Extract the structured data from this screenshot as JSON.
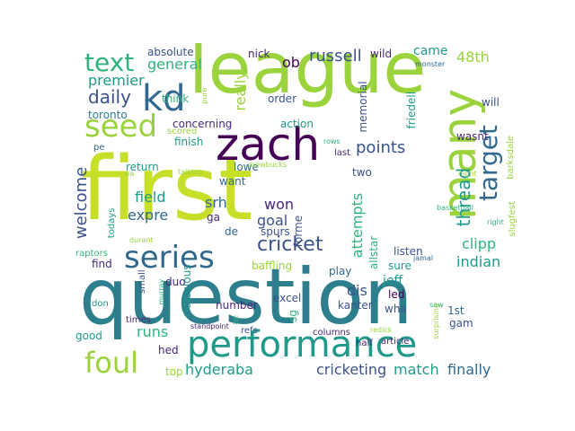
{
  "palette": {
    "yellow": "#c8df2a",
    "lime": "#9bd33c",
    "green": "#2fb47c",
    "teal": "#1f9a8a",
    "blue": "#2e7f8e",
    "steel": "#31688e",
    "indigo": "#3b528b",
    "purple": "#482878",
    "dark": "#440154"
  },
  "words": [
    {
      "t": "first",
      "c": "yellow"
    },
    {
      "t": "question",
      "c": "blue"
    },
    {
      "t": "league",
      "c": "lime"
    },
    {
      "t": "zach",
      "c": "dark"
    },
    {
      "t": "performance",
      "c": "teal"
    },
    {
      "t": "many",
      "c": "lime"
    },
    {
      "t": "kd",
      "c": "steel"
    },
    {
      "t": "series",
      "c": "steel"
    },
    {
      "t": "seed",
      "c": "lime"
    },
    {
      "t": "foul",
      "c": "lime"
    },
    {
      "t": "text",
      "c": "green"
    },
    {
      "t": "target",
      "c": "steel"
    },
    {
      "t": "cricket",
      "c": "indigo"
    },
    {
      "t": "welcome",
      "c": "indigo"
    },
    {
      "t": "daily",
      "c": "indigo"
    },
    {
      "t": "thread",
      "c": "teal"
    },
    {
      "t": "general",
      "c": "green"
    },
    {
      "t": "premier",
      "c": "teal"
    },
    {
      "t": "russell",
      "c": "indigo"
    },
    {
      "t": "points",
      "c": "indigo"
    },
    {
      "t": "really",
      "c": "lime"
    },
    {
      "t": "48th",
      "c": "lime"
    },
    {
      "t": "finally",
      "c": "steel"
    },
    {
      "t": "match",
      "c": "teal"
    },
    {
      "t": "cricketing",
      "c": "indigo"
    },
    {
      "t": "hyderaba",
      "c": "teal"
    },
    {
      "t": "runs",
      "c": "green"
    },
    {
      "t": "expre",
      "c": "steel"
    },
    {
      "t": "field",
      "c": "teal"
    },
    {
      "t": "won",
      "c": "purple"
    },
    {
      "t": "goal",
      "c": "indigo"
    },
    {
      "t": "srh",
      "c": "steel"
    },
    {
      "t": "attempts",
      "c": "green"
    },
    {
      "t": "indian",
      "c": "teal"
    },
    {
      "t": "dis",
      "c": "indigo"
    },
    {
      "t": "came",
      "c": "teal"
    },
    {
      "t": "ob",
      "c": "dark"
    },
    {
      "t": "wild",
      "c": "purple"
    },
    {
      "t": "nick",
      "c": "purple"
    },
    {
      "t": "absolute",
      "c": "indigo"
    },
    {
      "t": "think",
      "c": "green"
    },
    {
      "t": "toronto",
      "c": "blue"
    },
    {
      "t": "concerning",
      "c": "purple"
    },
    {
      "t": "order",
      "c": "indigo"
    },
    {
      "t": "action",
      "c": "teal"
    },
    {
      "t": "memorial",
      "c": "indigo"
    },
    {
      "t": "friedell",
      "c": "teal"
    },
    {
      "t": "will",
      "c": "indigo"
    },
    {
      "t": "wasnt",
      "c": "purple"
    },
    {
      "t": "finish",
      "c": "teal"
    },
    {
      "t": "duo",
      "c": "purple"
    },
    {
      "t": "return",
      "c": "teal"
    },
    {
      "t": "lowe",
      "c": "steel"
    },
    {
      "t": "want",
      "c": "steel"
    },
    {
      "t": "two",
      "c": "indigo"
    },
    {
      "t": "last",
      "c": "purple"
    },
    {
      "t": "rows",
      "c": "green"
    },
    {
      "t": "spurs",
      "c": "indigo"
    },
    {
      "t": "de",
      "c": "steel"
    },
    {
      "t": "ga",
      "c": "purple"
    },
    {
      "t": "forme",
      "c": "indigo"
    },
    {
      "t": "allstar",
      "c": "green"
    },
    {
      "t": "listen",
      "c": "indigo"
    },
    {
      "t": "clipp",
      "c": "green"
    },
    {
      "t": "sure",
      "c": "teal"
    },
    {
      "t": "jeff",
      "c": "teal"
    },
    {
      "t": "play",
      "c": "steel"
    },
    {
      "t": "baffling",
      "c": "lime"
    },
    {
      "t": "excel",
      "c": "indigo"
    },
    {
      "t": "led",
      "c": "dark"
    },
    {
      "t": "wha",
      "c": "indigo"
    },
    {
      "t": "kanter",
      "c": "indigo"
    },
    {
      "t": "1st",
      "c": "steel"
    },
    {
      "t": "gam",
      "c": "indigo"
    },
    {
      "t": "number",
      "c": "purple"
    },
    {
      "t": "sg",
      "c": "green"
    },
    {
      "t": "find",
      "c": "purple"
    },
    {
      "t": "raptors",
      "c": "green"
    },
    {
      "t": "times",
      "c": "purple"
    },
    {
      "t": "small",
      "c": "indigo"
    },
    {
      "t": "don",
      "c": "teal"
    },
    {
      "t": "good",
      "c": "teal"
    },
    {
      "t": "hed",
      "c": "purple"
    },
    {
      "t": "top",
      "c": "lime"
    },
    {
      "t": "refs",
      "c": "indigo"
    },
    {
      "t": "columns",
      "c": "purple"
    },
    {
      "t": "half",
      "c": "purple"
    },
    {
      "t": "article",
      "c": "purple"
    },
    {
      "t": "standpoint",
      "c": "purple"
    },
    {
      "t": "jj",
      "c": "green"
    },
    {
      "t": "redick",
      "c": "lime"
    },
    {
      "t": "saw",
      "c": "green"
    },
    {
      "t": "surprising",
      "c": "lime"
    },
    {
      "t": "todays",
      "c": "teal"
    },
    {
      "t": "durant",
      "c": "lime"
    },
    {
      "t": "murray",
      "c": "green"
    },
    {
      "t": "ridiculous",
      "c": "teal"
    },
    {
      "t": "pe",
      "c": "steel"
    },
    {
      "t": "wa",
      "c": "lime"
    },
    {
      "t": "talking",
      "c": "lime"
    },
    {
      "t": "drewbucks",
      "c": "lime"
    },
    {
      "t": "scored",
      "c": "lime"
    },
    {
      "t": "pure",
      "c": "lime"
    },
    {
      "t": "night",
      "c": "lime"
    },
    {
      "t": "basketball",
      "c": "green"
    },
    {
      "t": "slugfest",
      "c": "lime"
    },
    {
      "t": "right",
      "c": "green"
    },
    {
      "t": "barksdale",
      "c": "lime"
    },
    {
      "t": "jamal",
      "c": "steel"
    },
    {
      "t": "monster",
      "c": "steel"
    }
  ]
}
